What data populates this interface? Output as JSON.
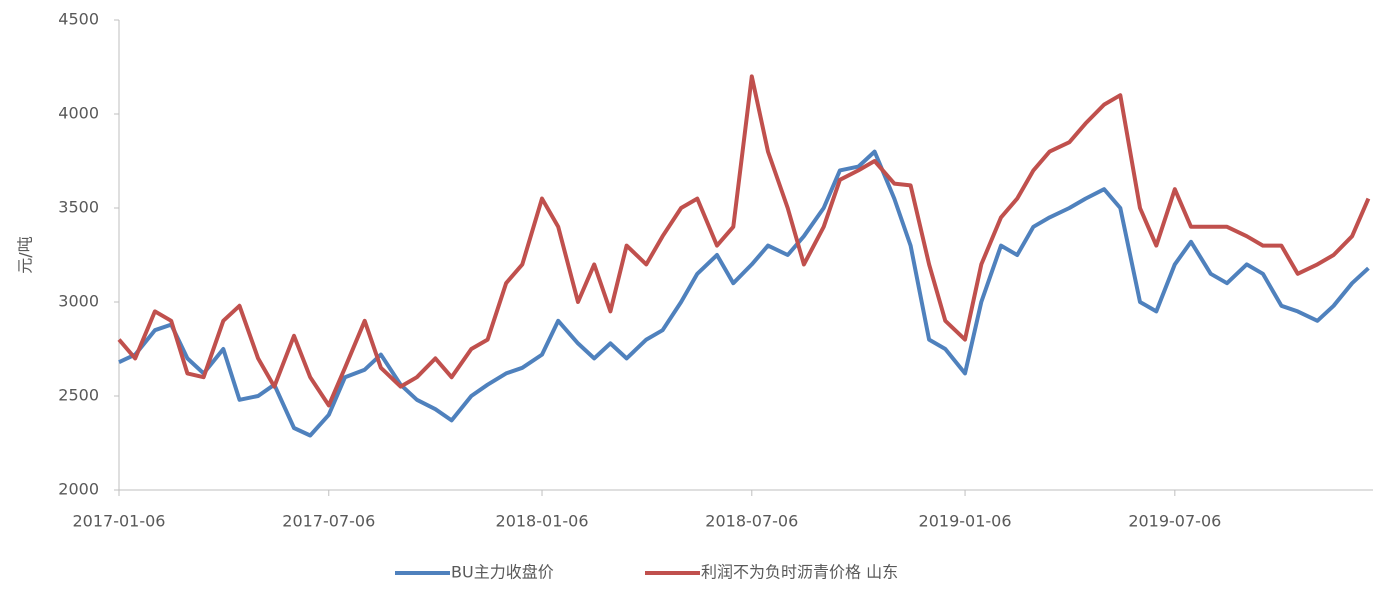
{
  "chart_data": {
    "type": "line",
    "y_label": "元/吨",
    "x": [
      "2017-01-06",
      "2017-01-20",
      "2017-02-06",
      "2017-02-20",
      "2017-03-06",
      "2017-03-20",
      "2017-04-06",
      "2017-04-20",
      "2017-05-06",
      "2017-05-20",
      "2017-06-06",
      "2017-06-20",
      "2017-07-06",
      "2017-07-20",
      "2017-08-06",
      "2017-08-20",
      "2017-09-06",
      "2017-09-20",
      "2017-10-06",
      "2017-10-20",
      "2017-11-06",
      "2017-11-20",
      "2017-12-06",
      "2017-12-20",
      "2018-01-06",
      "2018-01-20",
      "2018-02-06",
      "2018-02-20",
      "2018-03-06",
      "2018-03-20",
      "2018-04-06",
      "2018-04-20",
      "2018-05-06",
      "2018-05-20",
      "2018-06-06",
      "2018-06-20",
      "2018-07-06",
      "2018-07-20",
      "2018-08-06",
      "2018-08-20",
      "2018-09-06",
      "2018-09-20",
      "2018-10-06",
      "2018-10-20",
      "2018-11-06",
      "2018-11-20",
      "2018-12-06",
      "2018-12-20",
      "2019-01-06",
      "2019-01-20",
      "2019-02-06",
      "2019-02-20",
      "2019-03-06",
      "2019-03-20",
      "2019-04-06",
      "2019-04-20",
      "2019-05-06",
      "2019-05-20",
      "2019-06-06",
      "2019-06-20",
      "2019-07-06",
      "2019-07-20",
      "2019-08-06",
      "2019-08-20",
      "2019-09-06",
      "2019-09-20",
      "2019-10-06",
      "2019-10-20",
      "2019-11-06",
      "2019-11-20",
      "2019-12-06",
      "2019-12-20"
    ],
    "series": [
      {
        "name": "BU主力收盘价",
        "color": "#4f81bd",
        "values": [
          2680,
          2720,
          2850,
          2880,
          2700,
          2620,
          2750,
          2480,
          2500,
          2560,
          2330,
          2290,
          2400,
          2600,
          2640,
          2720,
          2560,
          2480,
          2430,
          2370,
          2500,
          2560,
          2620,
          2650,
          2720,
          2900,
          2780,
          2700,
          2780,
          2700,
          2800,
          2850,
          3000,
          3150,
          3250,
          3100,
          3200,
          3300,
          3250,
          3350,
          3500,
          3700,
          3720,
          3800,
          3550,
          3300,
          2800,
          2750,
          2620,
          3000,
          3300,
          3250,
          3400,
          3450,
          3500,
          3550,
          3600,
          3500,
          3000,
          2950,
          3200,
          3320,
          3150,
          3100,
          3200,
          3150,
          2980,
          2950,
          2900,
          2980,
          3100,
          3180
        ]
      },
      {
        "name": "利润不为负时沥青价格 山东",
        "color": "#c0504d",
        "values": [
          2800,
          2700,
          2950,
          2900,
          2620,
          2600,
          2900,
          2980,
          2700,
          2550,
          2820,
          2600,
          2450,
          2650,
          2900,
          2650,
          2550,
          2600,
          2700,
          2600,
          2750,
          2800,
          3100,
          3200,
          3550,
          3400,
          3000,
          3200,
          2950,
          3300,
          3200,
          3350,
          3500,
          3550,
          3300,
          3400,
          4200,
          3800,
          3500,
          3200,
          3400,
          3650,
          3700,
          3750,
          3630,
          3620,
          3200,
          2900,
          2800,
          3200,
          3450,
          3550,
          3700,
          3800,
          3850,
          3950,
          4050,
          4100,
          3500,
          3300,
          3600,
          3400,
          3400,
          3400,
          3350,
          3300,
          3300,
          3150,
          3200,
          3250,
          3350,
          3550
        ]
      }
    ],
    "xlim": [
      "2017-01-06",
      "2019-12-24"
    ],
    "xticks": [
      "2017-01-06",
      "2017-07-06",
      "2018-01-06",
      "2018-07-06",
      "2019-01-06",
      "2019-07-06"
    ],
    "ylim": [
      2000,
      4500
    ],
    "yticks": [
      2000,
      2500,
      3000,
      3500,
      4000,
      4500
    ],
    "grid": false
  }
}
